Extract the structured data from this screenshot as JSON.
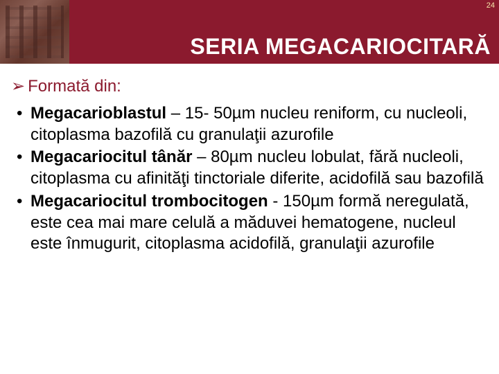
{
  "page_number": "24",
  "header": {
    "title": "SERIA MEGACARIOCITARĂ",
    "background_color": "#8b1a2e",
    "title_color": "#ffffff",
    "title_fontsize": 32
  },
  "intro": {
    "marker": "➢",
    "text": "Formată din:",
    "color": "#8b1a2e",
    "fontsize": 24
  },
  "bullets": [
    {
      "term": "Megacarioblastul",
      "sep": " – ",
      "desc": "15- 50µm nucleu reniform, cu nucleoli, citoplasma bazofilă cu granulaţii azurofile"
    },
    {
      "term": "Megacariocitul tânăr",
      "sep": " – ",
      "desc": "80µm nucleu lobulat, fără nucleoli, citoplasma cu afinităţi tinctoriale diferite, acidofilă sau bazofilă"
    },
    {
      "term": "Megacariocitul trombocitogen",
      "sep": " - ",
      "desc": "150µm formă neregulată, este cea mai mare celulă a măduvei hematogene, nucleul este înmugurit, citoplasma acidofilă, granulaţii azurofile"
    }
  ],
  "body_style": {
    "text_color": "#000000",
    "fontsize": 24,
    "background_color": "#ffffff"
  }
}
